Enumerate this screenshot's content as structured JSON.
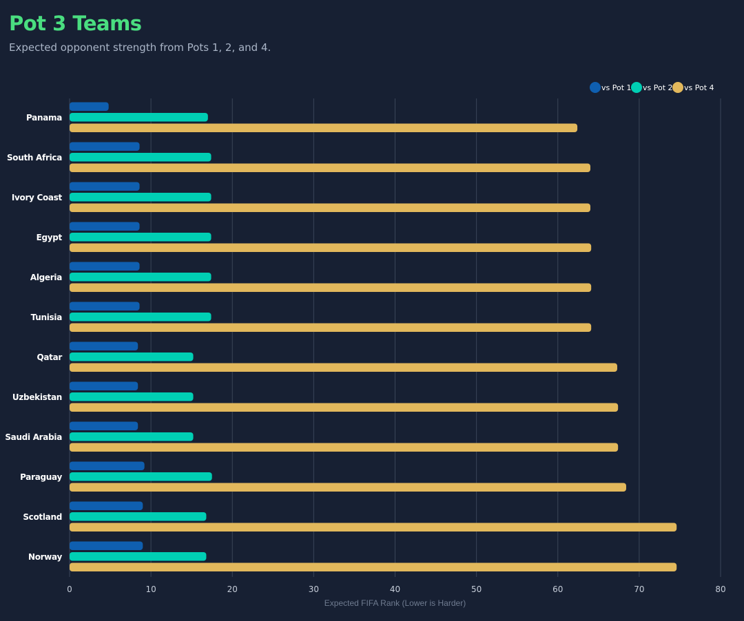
{
  "header": {
    "title": "Pot 3 Teams",
    "subtitle": "Expected opponent strength from Pots 1, 2, and 4."
  },
  "colors": {
    "background": "#172033",
    "title": "#4ade80",
    "grid": "#3a4558"
  },
  "chart_data": {
    "type": "bar",
    "orientation": "horizontal",
    "title": "Pot 3 Teams",
    "subtitle": "Expected opponent strength from Pots 1, 2, and 4.",
    "xlabel": "Expected FIFA Rank (Lower is Harder)",
    "ylabel": "",
    "xlim": [
      0,
      80
    ],
    "xticks": [
      0,
      10,
      20,
      30,
      40,
      50,
      60,
      70,
      80
    ],
    "grid": true,
    "legend_position": "top-right",
    "categories": [
      "Panama",
      "South Africa",
      "Ivory Coast",
      "Egypt",
      "Algeria",
      "Tunisia",
      "Qatar",
      "Uzbekistan",
      "Saudi Arabia",
      "Paraguay",
      "Scotland",
      "Norway"
    ],
    "series": [
      {
        "name": "vs Pot 1",
        "color": "#0f5fb0",
        "values": [
          4.8,
          8.6,
          8.6,
          8.6,
          8.6,
          8.6,
          8.4,
          8.4,
          8.4,
          9.2,
          9.0,
          9.0
        ]
      },
      {
        "name": "vs Pot 2",
        "color": "#00cfb4",
        "values": [
          17.0,
          17.4,
          17.4,
          17.4,
          17.4,
          17.4,
          15.2,
          15.2,
          15.2,
          17.5,
          16.8,
          16.8
        ]
      },
      {
        "name": "vs Pot 4",
        "color": "#e2b85c",
        "values": [
          62.4,
          64.0,
          64.0,
          64.1,
          64.1,
          64.1,
          67.3,
          67.4,
          67.4,
          68.4,
          74.6,
          74.6
        ]
      }
    ]
  }
}
